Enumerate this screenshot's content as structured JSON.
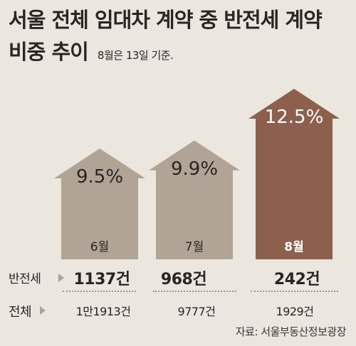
{
  "title_line1": "서울 전체 임대차 계약 중 반전세 계약",
  "title_line2": "비중 추이",
  "note": "8월은 13일 기준.",
  "row_labels": {
    "banjeonse": "반전세",
    "total": "전체"
  },
  "source": "자료: 서울부동산정보광장",
  "colors": {
    "background": "#ebe6de",
    "arrow_light": "#b1a396",
    "arrow_highlight": "#8d5f4d",
    "text_dark": "#2a2522"
  },
  "chart_data": {
    "type": "bar",
    "title": "서울 전체 임대차 계약 중 반전세 계약 비중 추이",
    "categories": [
      "6월",
      "7월",
      "8월"
    ],
    "values": [
      9.5,
      9.9,
      12.5
    ],
    "value_labels": [
      "9.5%",
      "9.9%",
      "12.5%"
    ],
    "unit": "%",
    "banjeonse_counts": [
      "1137건",
      "968건",
      "242건"
    ],
    "total_counts": [
      "1만1913건",
      "9777건",
      "1929건"
    ],
    "highlight_index": 2
  }
}
